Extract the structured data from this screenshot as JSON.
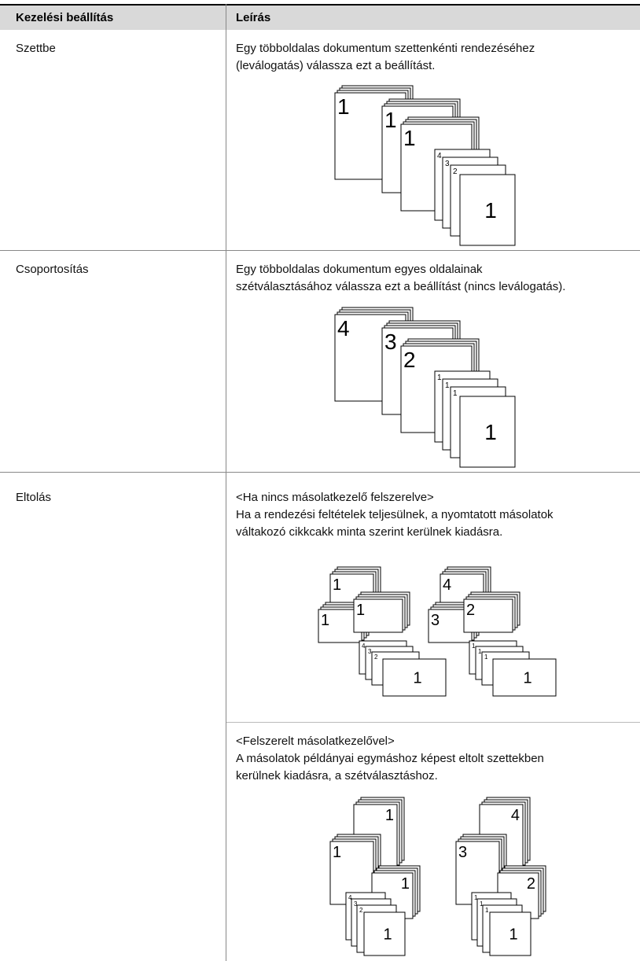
{
  "header": {
    "col1": "Kezelési beállítás",
    "col2": "Leírás"
  },
  "rows": [
    {
      "setting": "Szettbe",
      "description": [
        "Egy többoldalas dokumentum szettenkénti rendezéséhez",
        "(leválogatás) válassza ezt a beállítást."
      ],
      "illustration": [
        [
          "1",
          "1",
          "1",
          "4",
          "3",
          "2",
          "1"
        ]
      ]
    },
    {
      "setting": "Csoportosítás",
      "description": [
        "Egy többoldalas dokumentum egyes oldalainak",
        "szétválasztásához válassza ezt a beállítást (nincs leválogatás)."
      ],
      "illustration": [
        [
          "4",
          "3",
          "2",
          "1",
          "1",
          "1",
          "1"
        ]
      ]
    },
    {
      "setting": "Eltolás",
      "variants": [
        {
          "description": [
            "<Ha nincs másolatkezelő felszerelve>",
            "Ha a rendezési feltételek teljesülnek, a nyomtatott másolatok",
            "váltakozó cikkcakk minta szerint kerülnek kiadásra."
          ],
          "illustration": [
            [
              "1",
              "1",
              "1",
              "4",
              "3",
              "2",
              "1"
            ],
            [
              "4",
              "3",
              "2",
              "1",
              "1",
              "1",
              "1"
            ]
          ]
        },
        {
          "description": [
            "<Felszerelt másolatkezelővel>",
            "A másolatok példányai egymáshoz képest eltolt szettekben",
            "kerülnek kiadásra, a szétválasztáshoz."
          ],
          "illustration": [
            [
              "1",
              "1",
              "1",
              "4",
              "3",
              "2",
              "1"
            ],
            [
              "4",
              "3",
              "2",
              "1",
              "1",
              "1",
              "1"
            ]
          ]
        }
      ]
    }
  ]
}
